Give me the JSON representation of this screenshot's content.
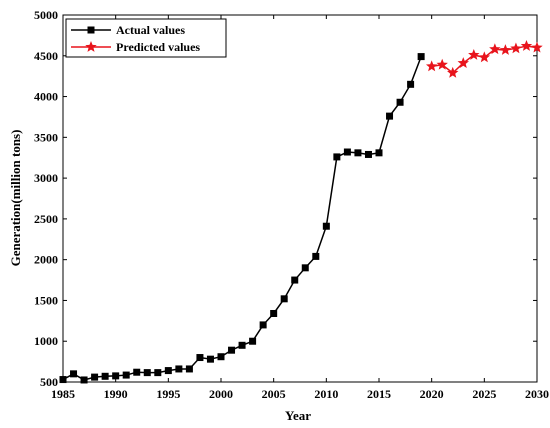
{
  "chart_data": {
    "type": "line",
    "title": "",
    "xlabel": "Year",
    "ylabel": "Generation(million tons)",
    "xlim": [
      1985,
      2030
    ],
    "ylim": [
      500,
      5000
    ],
    "xticks": [
      1985,
      1990,
      1995,
      2000,
      2005,
      2010,
      2015,
      2020,
      2025,
      2030
    ],
    "yticks": [
      500,
      1000,
      1500,
      2000,
      2500,
      3000,
      3500,
      4000,
      4500,
      5000
    ],
    "grid": false,
    "legend_position": "top-left",
    "series": [
      {
        "name": "Actual values",
        "color": "#000000",
        "marker": "square",
        "x": [
          1985,
          1986,
          1987,
          1988,
          1989,
          1990,
          1991,
          1992,
          1993,
          1994,
          1995,
          1996,
          1997,
          1998,
          1999,
          2000,
          2001,
          2002,
          2003,
          2004,
          2005,
          2006,
          2007,
          2008,
          2009,
          2010,
          2011,
          2012,
          2013,
          2014,
          2015,
          2016,
          2017,
          2018,
          2019
        ],
        "values": [
          530,
          600,
          525,
          560,
          570,
          575,
          585,
          620,
          615,
          615,
          640,
          660,
          660,
          800,
          780,
          810,
          890,
          950,
          1000,
          1200,
          1340,
          1520,
          1750,
          1900,
          2040,
          2410,
          3260,
          3320,
          3310,
          3290,
          3310,
          3760,
          3930,
          4150,
          4490
        ]
      },
      {
        "name": "Predicted values",
        "color": "#e8141c",
        "marker": "star",
        "x": [
          2020,
          2021,
          2022,
          2023,
          2024,
          2025,
          2026,
          2027,
          2028,
          2029,
          2030
        ],
        "values": [
          4370,
          4390,
          4290,
          4410,
          4510,
          4480,
          4580,
          4570,
          4590,
          4620,
          4600
        ]
      }
    ]
  }
}
